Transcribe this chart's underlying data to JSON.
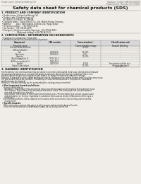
{
  "bg_color": "#f0ede8",
  "header_left": "Product name: Lithium Ion Battery Cell",
  "header_right_line1": "Substance number: SBR-SDS-000010",
  "header_right_line2": "Establishment / Revision: Dec.7,2018",
  "title": "Safety data sheet for chemical products (SDS)",
  "s1_title": "1. PRODUCT AND COMPANY IDENTIFICATION",
  "s1_lines": [
    " • Product name: Lithium Ion Battery Cell",
    " • Product code: Cylindrical-type cell",
    "   SY-18650U, SY-18650L, SY-18650A",
    " • Company name:    Sanyo Electric Co., Ltd., Mobile Energy Company",
    " • Address:         200-1  Kannondaira, Sumoto-City, Hyogo, Japan",
    " • Telephone number:   +81-799-26-4111",
    " • Fax number:  +81-799-26-4129",
    " • Emergency telephone number (daytime): +81-799-26-3862",
    "                             (Night and holiday): +81-799-26-3131"
  ],
  "s2_title": "2. COMPOSITION / INFORMATION ON INGREDIENTS",
  "s2_sub1": " • Substance or preparation: Preparation",
  "s2_sub2": " • Information about the chemical nature of product:",
  "tbl_headers": [
    "Component\nSeveral name",
    "CAS number",
    "Concentration /\nConcentration range",
    "Classification and\nhazard labeling"
  ],
  "tbl_rows": [
    [
      "Lithium oxide tentacles",
      "-",
      "30-60%",
      "-"
    ],
    [
      "(LiMnxCoyNizO2)",
      "",
      "",
      ""
    ],
    [
      "Iron",
      "7439-89-6",
      "10-20%",
      "-"
    ],
    [
      "Aluminum",
      "7429-90-5",
      "2-5%",
      "-"
    ],
    [
      "Graphite",
      "-",
      "10-20%",
      "-"
    ],
    [
      "(Mud in graphite-1)",
      "77791-45-2",
      "",
      ""
    ],
    [
      "(Al-Mix in graphite-1)",
      "7782-44-2",
      "",
      ""
    ],
    [
      "Copper",
      "7440-50-8",
      "5-15%",
      "Sensitization of the skin\ngroup No.2"
    ],
    [
      "Organic electrolyte",
      "-",
      "10-20%",
      "Inflammable liquid"
    ]
  ],
  "s3_title": "3. HAZARDS IDENTIFICATION",
  "s3_lines": [
    "For the battery cell, chemical materials are stored in a hermetically sealed metal case, designed to withstand",
    "temperatures and pressures encountered during normal use. As a result, during normal use, there is no",
    "physical danger of ignition or explosion and there is no danger of hazardous materials leakage.",
    "However, if exposed to a fire, added mechanical shocks, decomposition, smites electric short-circuiting may cause,",
    "fire gas release cannot be operated. The battery cell case will be breached or fire patterns, hazardous",
    "materials may be released.",
    "Moreover, if heated strongly by the surrounding fire, acid gas may be emitted."
  ],
  "s3_sub1": " • Most important hazard and effects:",
  "s3_sub1_lines": [
    "    Human health effects:",
    "      Inhalation: The release of the electrolyte has an anesthesia action and stimulates the respiratory tract.",
    "      Skin contact: The release of the electrolyte stimulates a skin. The electrolyte skin contact causes a",
    "      sore and stimulation on the skin.",
    "      Eye contact: The release of the electrolyte stimulates eyes. The electrolyte eye contact causes a sore",
    "      and stimulation on the eye. Especially, a substance that causes a strong inflammation of the eyes is",
    "      contained.",
    "    Environmental effects: Since a battery cell remains in the environment, do not throw out it into the",
    "      environment."
  ],
  "s3_sub2": " • Specific hazards:",
  "s3_sub2_lines": [
    "    If the electrolyte contacts with water, it will generate detrimental hydrogen fluoride.",
    "    Since the real electrolyte is inflammable liquid, do not bring close to fire."
  ],
  "tbl_x": [
    2,
    55,
    100,
    143,
    198
  ],
  "text_color": "#1a1a1a",
  "line_color": "#999999",
  "header_bg": "#d8d8d8"
}
